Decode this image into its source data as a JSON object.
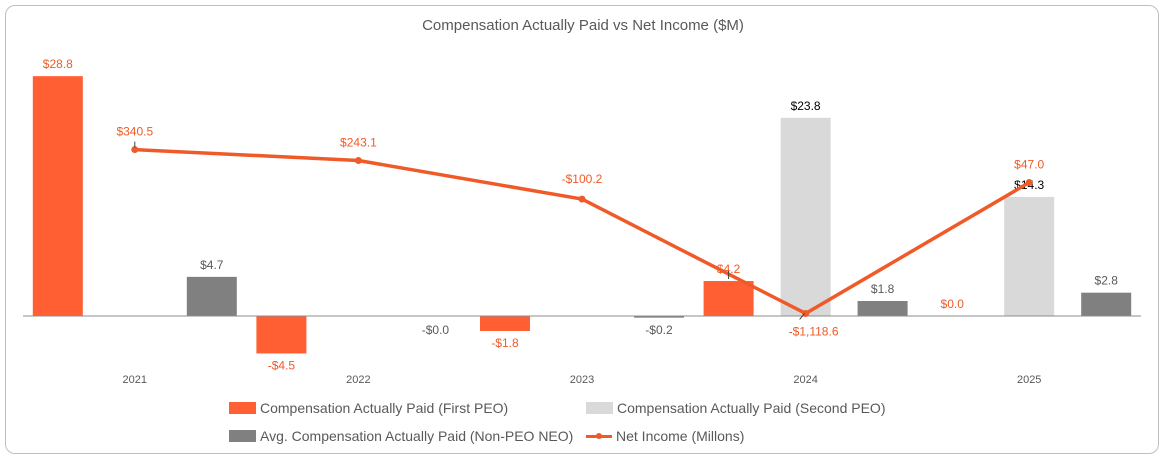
{
  "chart_data": {
    "type": "bar",
    "title": "Compensation Actually Paid vs Net Income ($M)",
    "categories": [
      "2021",
      "2022",
      "2023",
      "2024",
      "2025"
    ],
    "series": [
      {
        "name": "Compensation Actually Paid (First PEO)",
        "kind": "bar",
        "color": "#FF5F33",
        "values": [
          28.8,
          -4.5,
          -1.8,
          4.2,
          0.0
        ],
        "labels": [
          "$28.8",
          "-$4.5",
          "-$1.8",
          "$4.2",
          "$0.0"
        ]
      },
      {
        "name": "Compensation Actually Paid (Second PEO)",
        "kind": "bar",
        "color": "#D9D9D9",
        "values": [
          null,
          null,
          null,
          23.8,
          14.3
        ],
        "labels": [
          "",
          "",
          "",
          "$23.8",
          "$14.3"
        ]
      },
      {
        "name": "Avg. Compensation Actually Paid (Non-PEO NEO)",
        "kind": "bar",
        "color": "#808080",
        "values": [
          4.7,
          -0.0,
          -0.2,
          1.8,
          2.8
        ],
        "labels": [
          "$4.7",
          "-$0.0",
          "-$0.2",
          "$1.8",
          "$2.8"
        ]
      },
      {
        "name": "Net Income (Millons)",
        "kind": "line",
        "color": "#F05A28",
        "values": [
          340.5,
          243.1,
          -100.2,
          -1118.6,
          47.0
        ],
        "labels": [
          "$340.5",
          "$243.1",
          "-$100.2",
          "-$1,118.6",
          "$47.0"
        ]
      }
    ],
    "ylim_bars": [
      -6,
      30.5
    ],
    "ylim_line": [
      -1150,
      1120
    ],
    "grid": false,
    "legend_position": "bottom"
  }
}
